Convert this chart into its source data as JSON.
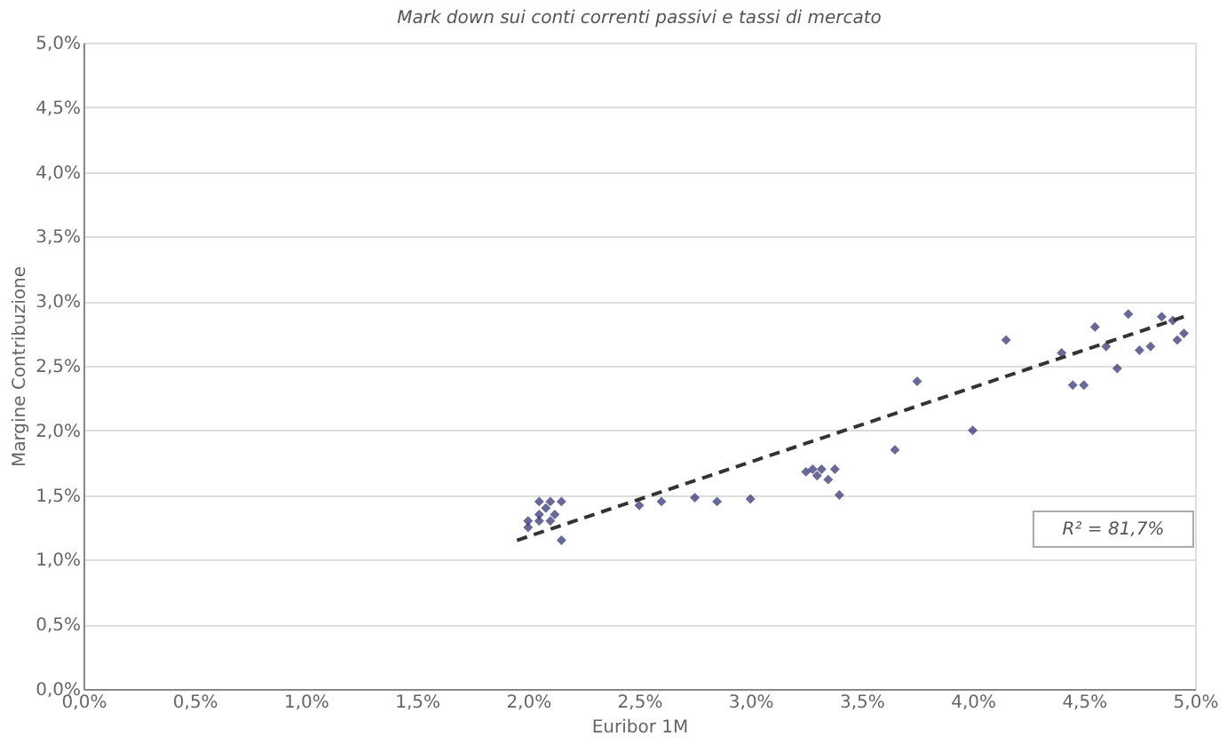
{
  "chart_data": {
    "type": "scatter",
    "title": "Mark down sui conti correnti passivi e tassi di mercato",
    "xlabel": "Euribor 1M",
    "ylabel": "Margine Contribuzione",
    "xlim": [
      0,
      5
    ],
    "ylim": [
      0,
      5
    ],
    "xticks": [
      {
        "value": 0,
        "label": "0,0%"
      },
      {
        "value": 0.5,
        "label": "0,5%"
      },
      {
        "value": 1,
        "label": "1,0%"
      },
      {
        "value": 1.5,
        "label": "1,5%"
      },
      {
        "value": 2,
        "label": "2,0%"
      },
      {
        "value": 2.5,
        "label": "2,5%"
      },
      {
        "value": 3,
        "label": "3,0%"
      },
      {
        "value": 3.5,
        "label": "3,5%"
      },
      {
        "value": 4,
        "label": "4,0%"
      },
      {
        "value": 4.5,
        "label": "4,5%"
      },
      {
        "value": 5,
        "label": "5,0%"
      }
    ],
    "yticks": [
      {
        "value": 0,
        "label": "0,0%"
      },
      {
        "value": 0.5,
        "label": "0,5%"
      },
      {
        "value": 1,
        "label": "1,0%"
      },
      {
        "value": 1.5,
        "label": "1,5%"
      },
      {
        "value": 2,
        "label": "2,0%"
      },
      {
        "value": 2.5,
        "label": "2,5%"
      },
      {
        "value": 3,
        "label": "3,0%"
      },
      {
        "value": 3.5,
        "label": "3,5%"
      },
      {
        "value": 4,
        "label": "4,0%"
      },
      {
        "value": 4.5,
        "label": "4,5%"
      },
      {
        "value": 5,
        "label": "5,0%"
      }
    ],
    "grid": "y",
    "marker": "diamond",
    "annotations": [
      "R² = 81,7%"
    ],
    "series": [
      {
        "type": "scatter",
        "color": "#2a2a6e",
        "x": [
          2.0,
          2.05,
          2.05,
          2.08,
          2.1,
          2.05,
          2.1,
          2.12,
          2.15,
          2.0,
          2.15,
          2.5,
          2.6,
          2.75,
          2.85,
          3.0,
          3.25,
          3.3,
          3.32,
          3.35,
          3.4,
          3.38,
          3.28,
          3.65,
          3.75,
          4.0,
          4.15,
          4.4,
          4.45,
          4.5,
          4.55,
          4.6,
          4.65,
          4.7,
          4.75,
          4.8,
          4.85,
          4.9,
          4.95,
          4.92
        ],
        "values": [
          1.25,
          1.3,
          1.35,
          1.4,
          1.45,
          1.45,
          1.3,
          1.35,
          1.15,
          1.3,
          1.45,
          1.42,
          1.45,
          1.48,
          1.45,
          1.47,
          1.68,
          1.65,
          1.7,
          1.62,
          1.5,
          1.7,
          1.7,
          1.85,
          2.38,
          2.0,
          2.7,
          2.6,
          2.35,
          2.35,
          2.8,
          2.65,
          2.48,
          2.9,
          2.62,
          2.65,
          2.88,
          2.85,
          2.75,
          2.7
        ]
      },
      {
        "type": "line",
        "color": "#333333",
        "line_style": "dashed",
        "marker": "none",
        "x": [
          1.95,
          4.95
        ],
        "values": [
          1.15,
          2.88
        ]
      }
    ]
  }
}
